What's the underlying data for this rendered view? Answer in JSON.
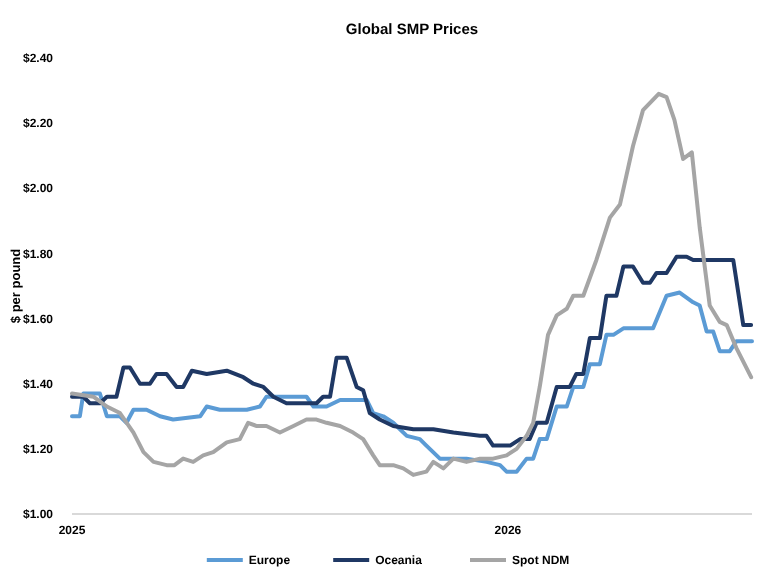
{
  "chart_data": {
    "type": "line",
    "title": "Global SMP Prices",
    "ylabel": "$ per pound",
    "xlim": [
      2025,
      2026.56
    ],
    "xticks": [
      2025,
      2026
    ],
    "ylim": [
      1,
      2.4
    ],
    "yticks": [
      {
        "value": 1,
        "label": "$1.00"
      },
      {
        "value": 1.2,
        "label": "$1.20"
      },
      {
        "value": 1.4,
        "label": "$1.40"
      },
      {
        "value": 1.6,
        "label": "$1.60"
      },
      {
        "value": 1.8,
        "label": "$1.80"
      },
      {
        "value": 2,
        "label": "$2.00"
      },
      {
        "value": 2.2,
        "label": "$2.20"
      },
      {
        "value": 2.4,
        "label": "$2.40"
      }
    ],
    "grid": false,
    "legend": "bottom",
    "marker": "none",
    "line_style": "solid",
    "series": [
      {
        "name": "Europe",
        "color": "#5b9bd5",
        "x": [
          2025.0,
          2025.018,
          2025.026,
          2025.064,
          2025.08,
          2025.11,
          2025.125,
          2025.141,
          2025.171,
          2025.202,
          2025.232,
          2025.294,
          2025.309,
          2025.339,
          2025.401,
          2025.431,
          2025.446,
          2025.538,
          2025.554,
          2025.584,
          2025.615,
          2025.676,
          2025.691,
          2025.714,
          2025.737,
          2025.768,
          2025.798,
          2025.813,
          2025.844,
          2025.905,
          2025.951,
          2025.982,
          2025.997,
          2026.02,
          2026.043,
          2026.058,
          2026.073,
          2026.089,
          2026.112,
          2026.135,
          2026.15,
          2026.173,
          2026.188,
          2026.211,
          2026.226,
          2026.242,
          2026.265,
          2026.333,
          2026.364,
          2026.394,
          2026.425,
          2026.44,
          2026.456,
          2026.471,
          2026.486,
          2026.509,
          2026.524,
          2026.56
        ],
        "values": [
          1.3,
          1.3,
          1.37,
          1.37,
          1.3,
          1.3,
          1.28,
          1.32,
          1.32,
          1.3,
          1.29,
          1.3,
          1.33,
          1.32,
          1.32,
          1.33,
          1.36,
          1.36,
          1.33,
          1.33,
          1.35,
          1.35,
          1.31,
          1.3,
          1.28,
          1.24,
          1.23,
          1.21,
          1.17,
          1.17,
          1.16,
          1.15,
          1.13,
          1.13,
          1.17,
          1.17,
          1.23,
          1.23,
          1.33,
          1.33,
          1.39,
          1.39,
          1.46,
          1.46,
          1.55,
          1.55,
          1.57,
          1.57,
          1.67,
          1.68,
          1.65,
          1.64,
          1.56,
          1.56,
          1.5,
          1.5,
          1.53,
          1.53
        ]
      },
      {
        "name": "Oceania",
        "color": "#1f3864",
        "x": [
          2025.0,
          2025.026,
          2025.041,
          2025.064,
          2025.08,
          2025.102,
          2025.118,
          2025.133,
          2025.156,
          2025.179,
          2025.194,
          2025.217,
          2025.24,
          2025.255,
          2025.275,
          2025.309,
          2025.355,
          2025.393,
          2025.416,
          2025.439,
          2025.462,
          2025.492,
          2025.561,
          2025.576,
          2025.592,
          2025.607,
          2025.63,
          2025.653,
          2025.668,
          2025.683,
          2025.706,
          2025.737,
          2025.783,
          2025.829,
          2025.875,
          2025.936,
          2025.951,
          2025.966,
          2026.005,
          2026.028,
          2026.05,
          2026.066,
          2026.089,
          2026.112,
          2026.142,
          2026.157,
          2026.173,
          2026.188,
          2026.211,
          2026.226,
          2026.249,
          2026.265,
          2026.287,
          2026.31,
          2026.326,
          2026.341,
          2026.364,
          2026.387,
          2026.41,
          2026.425,
          2026.517,
          2026.54,
          2026.558
        ],
        "values": [
          1.36,
          1.36,
          1.34,
          1.34,
          1.36,
          1.36,
          1.45,
          1.45,
          1.4,
          1.4,
          1.43,
          1.43,
          1.39,
          1.39,
          1.44,
          1.43,
          1.44,
          1.42,
          1.4,
          1.39,
          1.36,
          1.34,
          1.34,
          1.36,
          1.36,
          1.48,
          1.48,
          1.39,
          1.38,
          1.31,
          1.29,
          1.27,
          1.26,
          1.26,
          1.25,
          1.24,
          1.24,
          1.21,
          1.21,
          1.23,
          1.23,
          1.28,
          1.28,
          1.39,
          1.39,
          1.43,
          1.43,
          1.54,
          1.54,
          1.67,
          1.67,
          1.76,
          1.76,
          1.71,
          1.71,
          1.74,
          1.74,
          1.79,
          1.79,
          1.78,
          1.78,
          1.58,
          1.58
        ]
      },
      {
        "name": "Spot NDM",
        "color": "#a5a5a5",
        "x": [
          2025.0,
          2025.049,
          2025.08,
          2025.11,
          2025.141,
          2025.164,
          2025.187,
          2025.217,
          2025.235,
          2025.255,
          2025.278,
          2025.301,
          2025.324,
          2025.355,
          2025.385,
          2025.404,
          2025.424,
          2025.446,
          2025.477,
          2025.508,
          2025.538,
          2025.561,
          2025.584,
          2025.615,
          2025.645,
          2025.668,
          2025.691,
          2025.706,
          2025.737,
          2025.76,
          2025.783,
          2025.813,
          2025.829,
          2025.852,
          2025.875,
          2025.905,
          2025.936,
          2025.966,
          2025.997,
          2026.02,
          2026.043,
          2026.058,
          2026.073,
          2026.092,
          2026.112,
          2026.135,
          2026.15,
          2026.173,
          2026.203,
          2026.234,
          2026.257,
          2026.287,
          2026.31,
          2026.346,
          2026.364,
          2026.382,
          2026.402,
          2026.422,
          2026.44,
          2026.463,
          2026.486,
          2026.502,
          2026.524,
          2026.558
        ],
        "values": [
          1.37,
          1.36,
          1.33,
          1.31,
          1.25,
          1.19,
          1.16,
          1.15,
          1.15,
          1.17,
          1.16,
          1.18,
          1.19,
          1.22,
          1.23,
          1.28,
          1.27,
          1.27,
          1.25,
          1.27,
          1.29,
          1.29,
          1.28,
          1.27,
          1.25,
          1.23,
          1.18,
          1.15,
          1.15,
          1.14,
          1.12,
          1.13,
          1.16,
          1.14,
          1.17,
          1.16,
          1.17,
          1.17,
          1.18,
          1.2,
          1.24,
          1.28,
          1.39,
          1.55,
          1.61,
          1.63,
          1.67,
          1.67,
          1.78,
          1.91,
          1.95,
          2.13,
          2.24,
          2.29,
          2.28,
          2.21,
          2.09,
          2.11,
          1.88,
          1.64,
          1.59,
          1.58,
          1.51,
          1.42
        ]
      }
    ]
  }
}
